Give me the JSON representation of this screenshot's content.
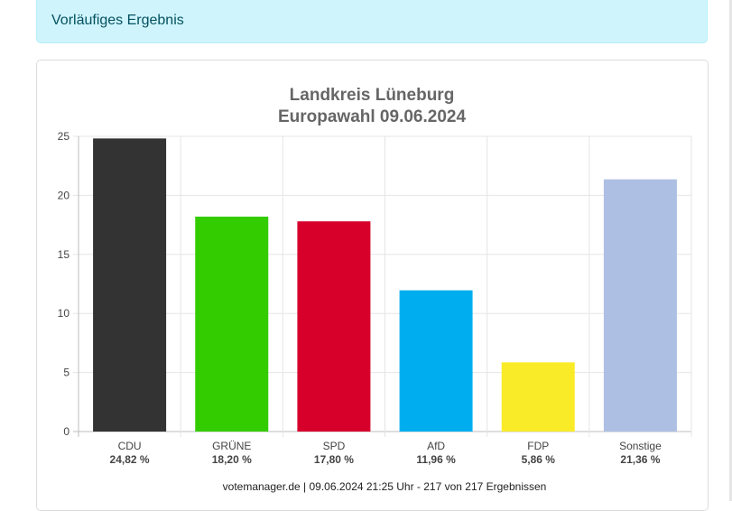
{
  "alert": {
    "text": "Vorläufiges Ergebnis"
  },
  "chart_data": {
    "type": "bar",
    "title": "Landkreis Lüneburg",
    "subtitle": "Europawahl 09.06.2024",
    "categories": [
      "CDU",
      "GRÜNE",
      "SPD",
      "AfD",
      "FDP",
      "Sonstige"
    ],
    "values": [
      24.82,
      18.2,
      17.8,
      11.96,
      5.86,
      21.36
    ],
    "value_labels": [
      "24,82 %",
      "18,20 %",
      "17,80 %",
      "11,96 %",
      "5,86 %",
      "21,36 %"
    ],
    "colors": [
      "#333333",
      "#33cc00",
      "#d6002b",
      "#00aeef",
      "#faeb28",
      "#aebfe4"
    ],
    "ylim": [
      0,
      25
    ],
    "yticks": [
      0,
      5,
      10,
      15,
      20,
      25
    ],
    "xlabel": "",
    "ylabel": "",
    "grid": true,
    "legend": "none"
  },
  "footer": {
    "text": "votemanager.de | 09.06.2024 21:25 Uhr - 217 von 217 Ergebnissen"
  }
}
